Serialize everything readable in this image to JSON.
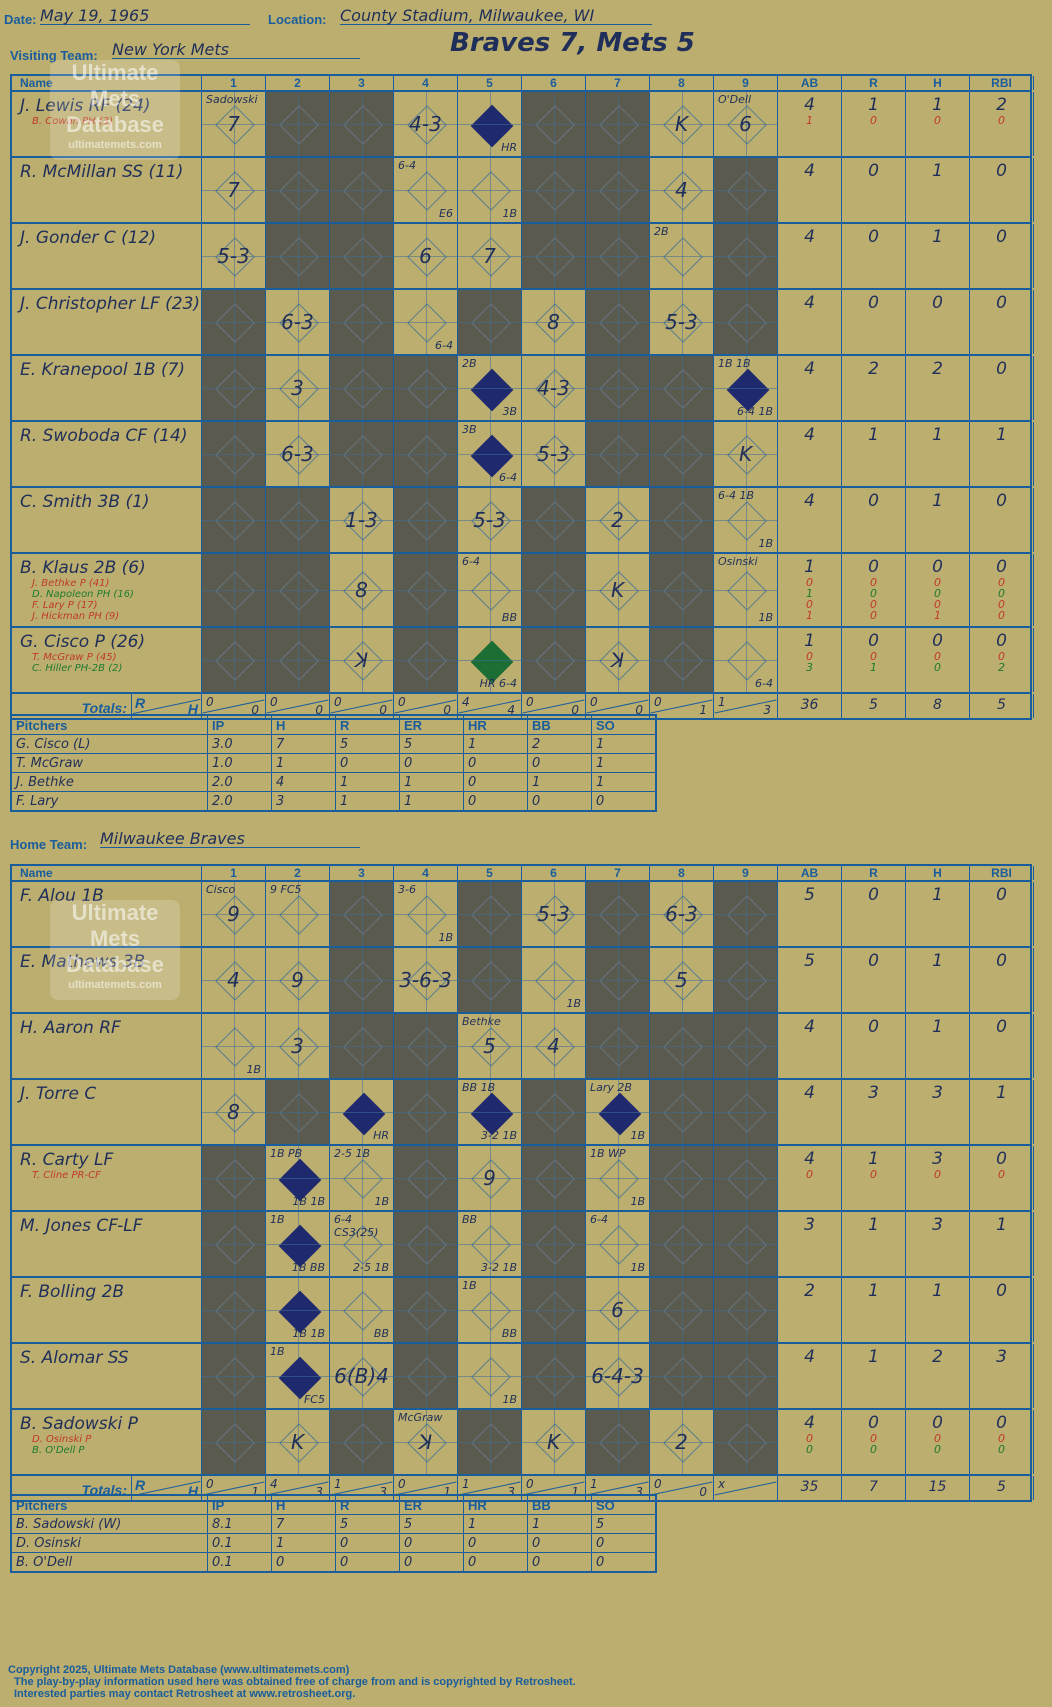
{
  "header": {
    "date_label": "Date:",
    "date": "May 19, 1965",
    "location_label": "Location:",
    "location": "County Stadium, Milwaukee, WI",
    "visiting_label": "Visiting Team:",
    "visiting_team": "New York Mets",
    "home_label": "Home Team:",
    "home_team": "Milwaukee Braves",
    "result": "Braves 7, Mets 5"
  },
  "columns": [
    "Name",
    "1",
    "2",
    "3",
    "4",
    "5",
    "6",
    "7",
    "8",
    "9",
    "AB",
    "R",
    "H",
    "RBI"
  ],
  "watermark": {
    "line1": "Ultimate",
    "line2": "Mets",
    "line3": "Database",
    "url": "ultimatemets.com"
  },
  "totals_label": "Totals:",
  "rh_labels": {
    "r": "R",
    "h": "H"
  },
  "visitors": {
    "batters": [
      {
        "name": "J. Lewis RF (24)",
        "subs": [
          {
            "text": "B. Cowan PH (3)",
            "color": "red"
          }
        ],
        "innings": [
          {
            "p": "7",
            "note": "Sadowski"
          },
          {
            "dark": true
          },
          {
            "dark": true
          },
          {
            "p": "4-3"
          },
          {
            "run": true,
            "note2": "HR"
          },
          {
            "dark": true
          },
          {
            "dark": true
          },
          {
            "p": "K"
          },
          {
            "p": "6",
            "note": "O'Dell",
            "red": true
          }
        ],
        "ab": "4",
        "r": "1",
        "h": "1",
        "rbi": "2",
        "sub_stats": [
          {
            "ab": "1",
            "r": "0",
            "h": "0",
            "rbi": "0",
            "color": "red"
          }
        ]
      },
      {
        "name": "R. McMillan SS (11)",
        "subs": [],
        "innings": [
          {
            "p": "7"
          },
          {
            "dark": true
          },
          {
            "dark": true
          },
          {
            "p": "",
            "note": "6-4",
            "note2": "E6"
          },
          {
            "p": "",
            "note2": "1B"
          },
          {
            "dark": true
          },
          {
            "dark": true
          },
          {
            "p": "4"
          },
          {
            "dark": true
          }
        ],
        "ab": "4",
        "r": "0",
        "h": "1",
        "rbi": "0",
        "sub_stats": []
      },
      {
        "name": "J. Gonder C (12)",
        "subs": [],
        "innings": [
          {
            "p": "5-3"
          },
          {
            "dark": true
          },
          {
            "dark": true
          },
          {
            "p": "6"
          },
          {
            "p": "7"
          },
          {
            "dark": true
          },
          {
            "dark": true
          },
          {
            "p": "",
            "note": "2B"
          },
          {
            "dark": true
          }
        ],
        "ab": "4",
        "r": "0",
        "h": "1",
        "rbi": "0",
        "sub_stats": []
      },
      {
        "name": "J. Christopher LF (23)",
        "subs": [],
        "innings": [
          {
            "dark": true
          },
          {
            "p": "6-3"
          },
          {
            "dark": true
          },
          {
            "p": "",
            "note2": "6-4"
          },
          {
            "dark": true
          },
          {
            "p": "8"
          },
          {
            "dark": true
          },
          {
            "p": "5-3"
          },
          {
            "dark": true
          }
        ],
        "ab": "4",
        "r": "0",
        "h": "0",
        "rbi": "0",
        "sub_stats": []
      },
      {
        "name": "E. Kranepool 1B (7)",
        "subs": [],
        "innings": [
          {
            "dark": true
          },
          {
            "p": "3"
          },
          {
            "dark": true
          },
          {
            "dark": true
          },
          {
            "run": true,
            "note": "2B",
            "note2": "3B"
          },
          {
            "p": "4-3"
          },
          {
            "dark": true
          },
          {
            "dark": true
          },
          {
            "run": true,
            "note": "1B   1B",
            "note2": "6-4  1B"
          }
        ],
        "ab": "4",
        "r": "2",
        "h": "2",
        "rbi": "0",
        "sub_stats": []
      },
      {
        "name": "R. Swoboda CF (14)",
        "subs": [],
        "innings": [
          {
            "dark": true
          },
          {
            "p": "6-3"
          },
          {
            "dark": true
          },
          {
            "dark": true
          },
          {
            "run": true,
            "note": "3B",
            "note2": "6-4"
          },
          {
            "p": "5-3"
          },
          {
            "dark": true
          },
          {
            "dark": true
          },
          {
            "p": "K"
          }
        ],
        "ab": "4",
        "r": "1",
        "h": "1",
        "rbi": "1",
        "sub_stats": []
      },
      {
        "name": "C. Smith 3B (1)",
        "subs": [],
        "innings": [
          {
            "dark": true
          },
          {
            "dark": true
          },
          {
            "p": "1-3"
          },
          {
            "dark": true
          },
          {
            "p": "5-3"
          },
          {
            "dark": true
          },
          {
            "p": "2"
          },
          {
            "dark": true
          },
          {
            "p": "",
            "note": "6-4 1B",
            "note2": "1B"
          }
        ],
        "ab": "4",
        "r": "0",
        "h": "1",
        "rbi": "0",
        "sub_stats": []
      },
      {
        "name": "B. Klaus 2B (6)",
        "subs": [
          {
            "text": "J. Bethke P (41)",
            "color": "red"
          },
          {
            "text": "D. Napoleon PH (16)",
            "color": "grn"
          },
          {
            "text": "F. Lary P (17)",
            "color": "red"
          },
          {
            "text": "J. Hickman PH (9)",
            "color": "red"
          }
        ],
        "innings": [
          {
            "dark": true
          },
          {
            "dark": true
          },
          {
            "p": "8"
          },
          {
            "dark": true
          },
          {
            "p": "",
            "note": "6-4",
            "note2": "BB"
          },
          {
            "dark": true
          },
          {
            "p": "K",
            "grn": true
          },
          {
            "dark": true
          },
          {
            "p": "",
            "note": "Osinski",
            "note2": "1B",
            "red": true
          }
        ],
        "ab": "1",
        "r": "0",
        "h": "0",
        "rbi": "0",
        "sub_stats": [
          {
            "ab": "0",
            "r": "0",
            "h": "0",
            "rbi": "0",
            "color": "red"
          },
          {
            "ab": "1",
            "r": "0",
            "h": "0",
            "rbi": "0",
            "color": "grn"
          },
          {
            "ab": "0",
            "r": "0",
            "h": "0",
            "rbi": "0",
            "color": "red"
          },
          {
            "ab": "1",
            "r": "0",
            "h": "1",
            "rbi": "0",
            "color": "red"
          }
        ]
      },
      {
        "name": "G. Cisco P (26)",
        "subs": [
          {
            "text": "T. McGraw P (45)",
            "color": "red"
          },
          {
            "text": "C. Hiller PH-2B (2)",
            "color": "grn"
          }
        ],
        "innings": [
          {
            "dark": true
          },
          {
            "dark": true
          },
          {
            "p": "ꓘ"
          },
          {
            "dark": true
          },
          {
            "runG": true,
            "note2": "HR 6-4"
          },
          {
            "dark": true
          },
          {
            "p": "ꓘ",
            "grn": true
          },
          {
            "dark": true
          },
          {
            "p": "",
            "note2": "6-4"
          }
        ],
        "ab": "1",
        "r": "0",
        "h": "0",
        "rbi": "0",
        "sub_stats": [
          {
            "ab": "0",
            "r": "0",
            "h": "0",
            "rbi": "0",
            "color": "red"
          },
          {
            "ab": "3",
            "r": "1",
            "h": "0",
            "rbi": "2",
            "color": "grn"
          }
        ]
      }
    ],
    "totals": {
      "innings": [
        [
          "0",
          "0"
        ],
        [
          "0",
          "0"
        ],
        [
          "0",
          "0"
        ],
        [
          "0",
          "0"
        ],
        [
          "4",
          "4"
        ],
        [
          "0",
          "0"
        ],
        [
          "0",
          "0"
        ],
        [
          "0",
          "1"
        ],
        [
          "1",
          "3"
        ]
      ],
      "ab": "36",
      "r": "5",
      "h": "8",
      "rbi": "5"
    },
    "pitchers": [
      {
        "name": "G. Cisco (L)",
        "ip": "3.0",
        "h": "7",
        "r": "5",
        "er": "5",
        "hr": "1",
        "bb": "2",
        "so": "1"
      },
      {
        "name": "T. McGraw",
        "ip": "1.0",
        "h": "1",
        "r": "0",
        "er": "0",
        "hr": "0",
        "bb": "0",
        "so": "1"
      },
      {
        "name": "J. Bethke",
        "ip": "2.0",
        "h": "4",
        "r": "1",
        "er": "1",
        "hr": "0",
        "bb": "1",
        "so": "1"
      },
      {
        "name": "F. Lary",
        "ip": "2.0",
        "h": "3",
        "r": "1",
        "er": "1",
        "hr": "0",
        "bb": "0",
        "so": "0"
      }
    ]
  },
  "home": {
    "batters": [
      {
        "name": "F. Alou 1B",
        "subs": [],
        "innings": [
          {
            "p": "9",
            "note": "Cisco"
          },
          {
            "p": "",
            "note": "9   FC5"
          },
          {
            "dark": true
          },
          {
            "p": "",
            "note": "3-6",
            "note2": "1B"
          },
          {
            "dark": true
          },
          {
            "p": "5-3"
          },
          {
            "dark": true
          },
          {
            "p": "6-3"
          },
          {
            "dark": true
          }
        ],
        "ab": "5",
        "r": "0",
        "h": "1",
        "rbi": "0",
        "sub_stats": []
      },
      {
        "name": "E. Mathews 3B",
        "subs": [],
        "innings": [
          {
            "p": "4"
          },
          {
            "p": "9"
          },
          {
            "dark": true
          },
          {
            "p": "3-6-3"
          },
          {
            "dark": true
          },
          {
            "p": "",
            "note2": "1B"
          },
          {
            "dark": true
          },
          {
            "p": "5"
          },
          {
            "dark": true
          }
        ],
        "ab": "5",
        "r": "0",
        "h": "1",
        "rbi": "0",
        "sub_stats": []
      },
      {
        "name": "H. Aaron RF",
        "subs": [],
        "innings": [
          {
            "p": "",
            "note2": "1B"
          },
          {
            "p": "3"
          },
          {
            "dark": true
          },
          {
            "dark": true
          },
          {
            "p": "5",
            "note": "Bethke",
            "red": true
          },
          {
            "p": "4"
          },
          {
            "dark": true
          },
          {
            "dark": true
          },
          {
            "dark": true
          }
        ],
        "ab": "4",
        "r": "0",
        "h": "1",
        "rbi": "0",
        "sub_stats": []
      },
      {
        "name": "J. Torre C",
        "subs": [],
        "innings": [
          {
            "p": "8"
          },
          {
            "dark": true
          },
          {
            "run": true,
            "note2": "HR"
          },
          {
            "dark": true
          },
          {
            "run": true,
            "note": "BB 1B",
            "note2": "3-2  1B"
          },
          {
            "dark": true
          },
          {
            "run": true,
            "note": "Lary 2B",
            "note2": "1B"
          },
          {
            "dark": true
          },
          {
            "dark": true
          }
        ],
        "ab": "4",
        "r": "3",
        "h": "3",
        "rbi": "1",
        "sub_stats": []
      },
      {
        "name": "R. Carty LF",
        "subs": [
          {
            "text": "T. Cline PR-CF",
            "color": "red"
          }
        ],
        "innings": [
          {
            "dark": true
          },
          {
            "run": true,
            "note": "1B  PB",
            "note2": "1B  1B"
          },
          {
            "p": "",
            "note": "2-5 1B",
            "note2": "1B"
          },
          {
            "dark": true
          },
          {
            "p": "9"
          },
          {
            "dark": true
          },
          {
            "p": "",
            "note": "1B  WP",
            "note2": "1B",
            "red": true
          },
          {
            "dark": true
          },
          {
            "dark": true
          }
        ],
        "ab": "4",
        "r": "1",
        "h": "3",
        "rbi": "0",
        "sub_stats": [
          {
            "ab": "0",
            "r": "0",
            "h": "0",
            "rbi": "0",
            "color": "red"
          }
        ]
      },
      {
        "name": "M. Jones CF-LF",
        "subs": [],
        "innings": [
          {
            "dark": true
          },
          {
            "run": true,
            "note": "1B",
            "note2": "1B  BB"
          },
          {
            "p": "",
            "note": "6-4 CS3(25)",
            "note2": "2-5 1B"
          },
          {
            "dark": true
          },
          {
            "p": "",
            "note": "BB",
            "note2": "3-2 1B"
          },
          {
            "dark": true
          },
          {
            "p": "",
            "note": "6-4",
            "note2": "1B"
          },
          {
            "dark": true
          },
          {
            "dark": true
          }
        ],
        "ab": "3",
        "r": "1",
        "h": "3",
        "rbi": "1",
        "sub_stats": []
      },
      {
        "name": "F. Bolling 2B",
        "subs": [],
        "innings": [
          {
            "dark": true
          },
          {
            "run": true,
            "note2": "1B  1B"
          },
          {
            "p": "",
            "note2": "BB"
          },
          {
            "dark": true
          },
          {
            "p": "",
            "note": "1B",
            "note2": "BB"
          },
          {
            "dark": true
          },
          {
            "p": "6"
          },
          {
            "dark": true
          },
          {
            "dark": true
          }
        ],
        "ab": "2",
        "r": "1",
        "h": "1",
        "rbi": "0",
        "sub_stats": []
      },
      {
        "name": "S. Alomar SS",
        "subs": [],
        "innings": [
          {
            "dark": true
          },
          {
            "run": true,
            "note": "1B",
            "note2": "FC5"
          },
          {
            "p": "6(B)4"
          },
          {
            "dark": true
          },
          {
            "p": "",
            "note2": "1B"
          },
          {
            "dark": true
          },
          {
            "p": "6-4-3"
          },
          {
            "dark": true
          },
          {
            "dark": true
          }
        ],
        "ab": "4",
        "r": "1",
        "h": "2",
        "rbi": "3",
        "sub_stats": []
      },
      {
        "name": "B. Sadowski P",
        "subs": [
          {
            "text": "D. Osinski P",
            "color": "red"
          },
          {
            "text": "B. O'Dell P",
            "color": "grn"
          }
        ],
        "innings": [
          {
            "dark": true
          },
          {
            "p": "K"
          },
          {
            "dark": true
          },
          {
            "p": "ꓘ",
            "note": "McGraw",
            "red": true
          },
          {
            "dark": true
          },
          {
            "p": "K"
          },
          {
            "dark": true
          },
          {
            "p": "2"
          },
          {
            "dark": true
          }
        ],
        "ab": "4",
        "r": "0",
        "h": "0",
        "rbi": "0",
        "sub_stats": [
          {
            "ab": "0",
            "r": "0",
            "h": "0",
            "rbi": "0",
            "color": "red"
          },
          {
            "ab": "0",
            "r": "0",
            "h": "0",
            "rbi": "0",
            "color": "grn"
          }
        ]
      }
    ],
    "totals": {
      "innings": [
        [
          "0",
          "1"
        ],
        [
          "4",
          "3"
        ],
        [
          "1",
          "3"
        ],
        [
          "0",
          "1"
        ],
        [
          "1",
          "3"
        ],
        [
          "0",
          "1"
        ],
        [
          "1",
          "3"
        ],
        [
          "0",
          "0"
        ],
        [
          "x",
          ""
        ]
      ],
      "ab": "35",
      "r": "7",
      "h": "15",
      "rbi": "5"
    },
    "pitchers": [
      {
        "name": "B. Sadowski (W)",
        "ip": "8.1",
        "h": "7",
        "r": "5",
        "er": "5",
        "hr": "1",
        "bb": "1",
        "so": "5"
      },
      {
        "name": "D. Osinski",
        "ip": "0.1",
        "h": "1",
        "r": "0",
        "er": "0",
        "hr": "0",
        "bb": "0",
        "so": "0"
      },
      {
        "name": "B. O'Dell",
        "ip": "0.1",
        "h": "0",
        "r": "0",
        "er": "0",
        "hr": "0",
        "bb": "0",
        "so": "0"
      }
    ]
  },
  "pitcher_columns": [
    "Pitchers",
    "IP",
    "H",
    "R",
    "ER",
    "HR",
    "BB",
    "SO"
  ],
  "footer": {
    "line1": "Copyright 2025, Ultimate Mets Database (www.ultimatemets.com)",
    "line2": "The play-by-play information used here was obtained free of charge from and is copyrighted by Retrosheet.",
    "line3": "Interested parties may contact Retrosheet at www.retrosheet.org."
  }
}
